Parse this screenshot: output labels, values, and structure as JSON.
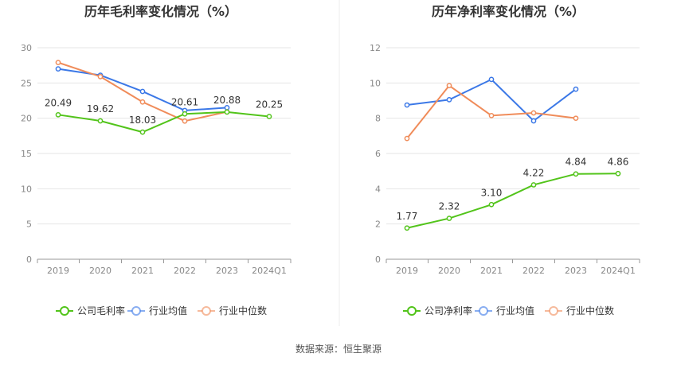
{
  "source_label": "数据来源：恒生聚源",
  "colors": {
    "company": "#52c41a",
    "industry_avg": "#3b78e7",
    "industry_median": "#f08c5a",
    "grid": "#e6e6e6",
    "axis": "#999999",
    "divider": "#eeeeee"
  },
  "chart_data": [
    {
      "type": "line",
      "title": "历年毛利率变化情况（%）",
      "categories": [
        "2019",
        "2020",
        "2021",
        "2022",
        "2023",
        "2024Q1"
      ],
      "ylim": [
        0,
        30
      ],
      "yticks": [
        0,
        5,
        10,
        15,
        20,
        25,
        30
      ],
      "grid": true,
      "legend_position": "bottom",
      "series": [
        {
          "name": "公司毛利率",
          "color_key": "company",
          "values": [
            20.49,
            19.62,
            18.03,
            20.61,
            20.88,
            20.25
          ],
          "labels": [
            "20.49",
            "19.62",
            "18.03",
            "20.61",
            "20.88",
            "20.25"
          ]
        },
        {
          "name": "行业均值",
          "color_key": "industry_avg",
          "values": [
            27.0,
            26.1,
            23.8,
            21.1,
            21.5,
            null
          ]
        },
        {
          "name": "行业中位数",
          "color_key": "industry_median",
          "values": [
            27.9,
            25.9,
            22.3,
            19.6,
            20.9,
            null
          ]
        }
      ]
    },
    {
      "type": "line",
      "title": "历年净利率变化情况（%）",
      "categories": [
        "2019",
        "2020",
        "2021",
        "2022",
        "2023",
        "2024Q1"
      ],
      "ylim": [
        0,
        12
      ],
      "yticks": [
        0,
        2,
        4,
        6,
        8,
        10,
        12
      ],
      "grid": true,
      "legend_position": "bottom",
      "series": [
        {
          "name": "公司净利率",
          "color_key": "company",
          "values": [
            1.77,
            2.32,
            3.1,
            4.22,
            4.84,
            4.86
          ],
          "labels": [
            "1.77",
            "2.32",
            "3.10",
            "4.22",
            "4.84",
            "4.86"
          ]
        },
        {
          "name": "行业均值",
          "color_key": "industry_avg",
          "values": [
            8.75,
            9.05,
            10.2,
            7.85,
            9.65,
            null
          ]
        },
        {
          "name": "行业中位数",
          "color_key": "industry_median",
          "values": [
            6.85,
            9.85,
            8.15,
            8.3,
            8.0,
            null
          ]
        }
      ]
    }
  ]
}
